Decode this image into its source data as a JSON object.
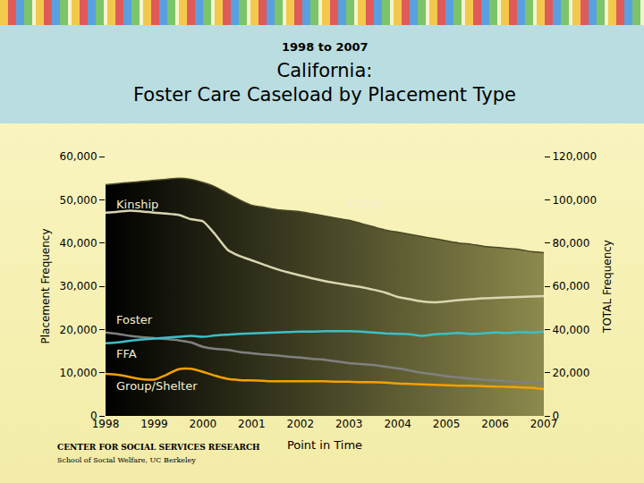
{
  "chart_data": {
    "type": "line",
    "subtitle": "1998 to 2007",
    "title": "California:\nFoster Care Caseload by Placement Type",
    "x_label": "Point in Time",
    "y_label": "Placement Frequency",
    "y2_label": "TOTAL Frequency",
    "grid": false,
    "x": [
      1998,
      1998.25,
      1998.5,
      1998.75,
      1999,
      1999.25,
      1999.5,
      1999.75,
      2000,
      2000.25,
      2000.5,
      2000.75,
      2001,
      2001.25,
      2001.5,
      2001.75,
      2002,
      2002.25,
      2002.5,
      2002.75,
      2003,
      2003.25,
      2003.5,
      2003.75,
      2004,
      2004.25,
      2004.5,
      2004.75,
      2005,
      2005.25,
      2005.5,
      2005.75,
      2006,
      2006.25,
      2006.5,
      2006.75,
      2007
    ],
    "xlim": [
      1998,
      2007
    ],
    "xticks": [
      1998,
      1999,
      2000,
      2001,
      2002,
      2003,
      2004,
      2005,
      2006,
      2007
    ],
    "ylim": [
      0,
      60000
    ],
    "yticks": [
      0,
      {
        "value": 10000,
        "label": "10,000"
      },
      {
        "value": 20000,
        "label": "20,000"
      },
      {
        "value": 30000,
        "label": "30,000"
      },
      {
        "value": 40000,
        "label": "40,000"
      },
      {
        "value": 50000,
        "label": "50,000"
      },
      {
        "value": 60000,
        "label": "60,000"
      }
    ],
    "y2lim": [
      0,
      120000
    ],
    "y2ticks": [
      0,
      {
        "value": 20000,
        "label": "20,000"
      },
      {
        "value": 40000,
        "label": "40,000"
      },
      {
        "value": 60000,
        "label": "60,000"
      },
      {
        "value": 80000,
        "label": "80,000"
      },
      {
        "value": 100000,
        "label": "100,000"
      },
      {
        "value": 120000,
        "label": "120,000"
      }
    ],
    "series": [
      {
        "name": "TOTAL",
        "type": "area",
        "axis": "y2",
        "color": "#4a4826",
        "values": [
          107000,
          107500,
          108000,
          108500,
          109000,
          109500,
          110000,
          109500,
          108000,
          106000,
          103000,
          100000,
          97500,
          96500,
          95500,
          95000,
          94500,
          93500,
          92500,
          91500,
          90500,
          89000,
          87500,
          86000,
          85000,
          84000,
          83000,
          82000,
          81000,
          80000,
          79500,
          78500,
          78000,
          77500,
          77000,
          76000,
          75500
        ]
      },
      {
        "name": "Kinship",
        "type": "line",
        "color": "#d9d6b0",
        "values": [
          47000,
          47200,
          47500,
          47300,
          47000,
          46800,
          46500,
          45500,
          45000,
          42000,
          38500,
          37000,
          36000,
          35000,
          34000,
          33200,
          32500,
          31800,
          31200,
          30700,
          30200,
          29800,
          29200,
          28500,
          27500,
          27000,
          26500,
          26300,
          26500,
          26800,
          27000,
          27200,
          27300,
          27400,
          27500,
          27600,
          27700
        ]
      },
      {
        "name": "Foster",
        "type": "line",
        "color": "#808080",
        "values": [
          19300,
          19000,
          18500,
          18200,
          18000,
          17800,
          17500,
          17000,
          16000,
          15500,
          15300,
          14800,
          14500,
          14200,
          14000,
          13700,
          13500,
          13200,
          13000,
          12600,
          12200,
          12000,
          11800,
          11400,
          11000,
          10500,
          10000,
          9600,
          9200,
          8900,
          8600,
          8400,
          8200,
          8000,
          7800,
          7700,
          7600
        ]
      },
      {
        "name": "FFA",
        "type": "line",
        "color": "#3cbfc8",
        "values": [
          16800,
          17000,
          17400,
          17700,
          17900,
          18100,
          18300,
          18500,
          18300,
          18600,
          18800,
          19000,
          19100,
          19200,
          19300,
          19400,
          19500,
          19500,
          19600,
          19600,
          19600,
          19500,
          19300,
          19100,
          19000,
          18900,
          18500,
          18900,
          19000,
          19200,
          19000,
          19100,
          19300,
          19200,
          19400,
          19300,
          19500
        ]
      },
      {
        "name": "Group/Shelter",
        "type": "line",
        "color": "#f5a000",
        "values": [
          9700,
          9500,
          9000,
          8500,
          8400,
          9500,
          10800,
          10900,
          10200,
          9300,
          8600,
          8300,
          8200,
          8100,
          8000,
          8000,
          8000,
          8000,
          8000,
          7900,
          7900,
          7800,
          7800,
          7700,
          7500,
          7400,
          7300,
          7200,
          7100,
          7000,
          7000,
          6900,
          6800,
          6700,
          6600,
          6500,
          6200
        ]
      }
    ],
    "annotations": [
      "CENTER FOR SOCIAL SERVICES RESEARCH",
      "School of Social Welfare, UC Berkeley"
    ]
  }
}
